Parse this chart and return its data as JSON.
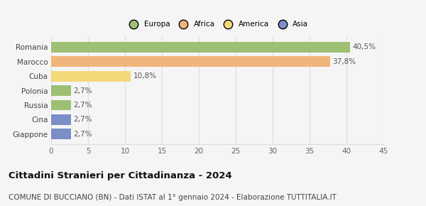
{
  "categories": [
    "Giappone",
    "Cina",
    "Russia",
    "Polonia",
    "Cuba",
    "Marocco",
    "Romania"
  ],
  "values": [
    2.7,
    2.7,
    2.7,
    2.7,
    10.8,
    37.8,
    40.5
  ],
  "labels": [
    "2,7%",
    "2,7%",
    "2,7%",
    "2,7%",
    "10,8%",
    "37,8%",
    "40,5%"
  ],
  "colors": [
    "#7b8ec8",
    "#7b8ec8",
    "#9dc074",
    "#9dc074",
    "#f5d97a",
    "#f0b57a",
    "#9dc074"
  ],
  "legend_items": [
    {
      "label": "Europa",
      "color": "#9dc074"
    },
    {
      "label": "Africa",
      "color": "#f0b57a"
    },
    {
      "label": "America",
      "color": "#f5d97a"
    },
    {
      "label": "Asia",
      "color": "#7b8ec8"
    }
  ],
  "xlim": [
    0,
    45
  ],
  "xticks": [
    0,
    5,
    10,
    15,
    20,
    25,
    30,
    35,
    40,
    45
  ],
  "title": "Cittadini Stranieri per Cittadinanza - 2024",
  "subtitle": "COMUNE DI BUCCIANO (BN) - Dati ISTAT al 1° gennaio 2024 - Elaborazione TUTTITALIA.IT",
  "title_fontsize": 9.5,
  "subtitle_fontsize": 7.5,
  "label_fontsize": 7.5,
  "tick_fontsize": 7.5,
  "bar_height": 0.72,
  "background_color": "#f5f5f5",
  "grid_color": "#dddddd"
}
